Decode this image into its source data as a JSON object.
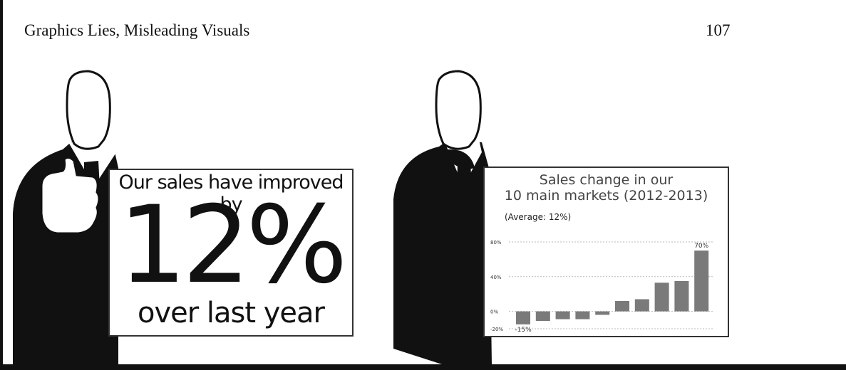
{
  "header": {
    "title": "Graphics Lies, Misleading Visuals",
    "page_number": "107"
  },
  "left_sign": {
    "line1": "Our sales have improved by",
    "big_value": "12%",
    "line3": "over last year"
  },
  "right_sign": {
    "title_line1": "Sales change in our",
    "title_line2": "10 main markets (2012-2013)",
    "subtitle": "(Average: 12%)"
  },
  "colors": {
    "silhouette": "#111111",
    "bar": "#7a7a7a",
    "grid": "#bbbbbb"
  },
  "chart_data": {
    "type": "bar",
    "categories": [
      "",
      "",
      "",
      "",
      "",
      "",
      "",
      "",
      "",
      ""
    ],
    "values": [
      -15,
      -11,
      -9,
      -9,
      -4,
      12,
      14,
      33,
      35,
      70
    ],
    "title": "Sales change in our 10 main markets (2012-2013)",
    "subtitle": "(Average: 12%)",
    "xlabel": "",
    "ylabel": "",
    "ylim": [
      -20,
      80
    ],
    "yticks": [
      "-20%",
      "0%",
      "40%",
      "80%"
    ],
    "data_labels": [
      {
        "index": 0,
        "text": "-15%"
      },
      {
        "index": 9,
        "text": "70%"
      }
    ],
    "grid": true
  }
}
